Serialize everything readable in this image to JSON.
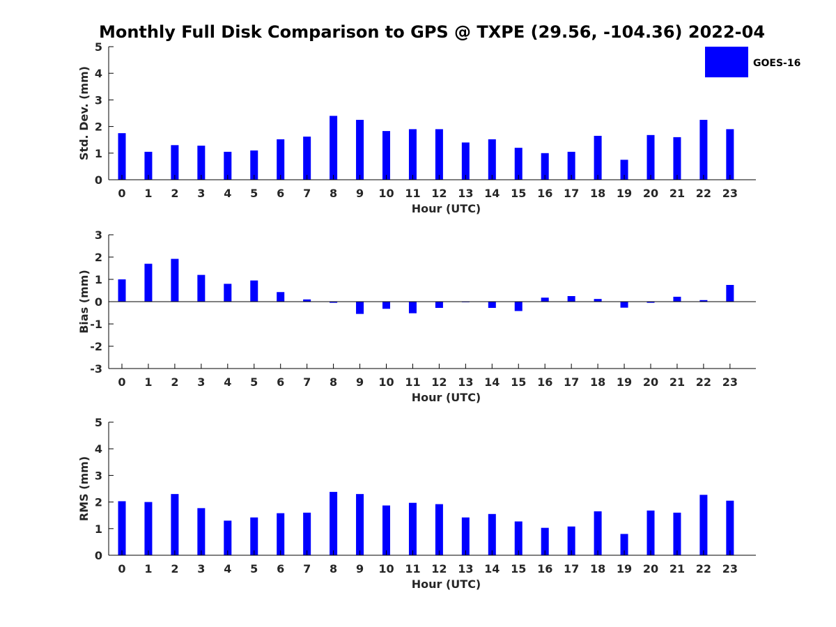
{
  "title": "Monthly Full Disk Comparison to GPS @ TXPE (29.56, -104.36) 2022-04",
  "legend": {
    "label": "GOES-16",
    "color": "#0000ff"
  },
  "chart_data": [
    {
      "type": "bar",
      "name": "stddev",
      "categories": [
        "0",
        "1",
        "2",
        "3",
        "4",
        "5",
        "6",
        "7",
        "8",
        "9",
        "10",
        "11",
        "12",
        "13",
        "14",
        "15",
        "16",
        "17",
        "18",
        "19",
        "20",
        "21",
        "22",
        "23"
      ],
      "series": [
        {
          "name": "GOES-16",
          "values": [
            1.75,
            1.05,
            1.3,
            1.28,
            1.05,
            1.1,
            1.52,
            1.62,
            2.4,
            2.25,
            1.83,
            1.9,
            1.9,
            1.4,
            1.52,
            1.2,
            1.0,
            1.05,
            1.65,
            0.75,
            1.68,
            1.6,
            2.25,
            1.9
          ]
        }
      ],
      "xlabel": "Hour (UTC)",
      "ylabel": "Std. Dev. (mm)",
      "ylim": [
        0,
        5
      ],
      "yticks": [
        "0",
        "1",
        "2",
        "3",
        "4",
        "5"
      ],
      "color": "#0000ff"
    },
    {
      "type": "bar",
      "name": "bias",
      "categories": [
        "0",
        "1",
        "2",
        "3",
        "4",
        "5",
        "6",
        "7",
        "8",
        "9",
        "10",
        "11",
        "12",
        "13",
        "14",
        "15",
        "16",
        "17",
        "18",
        "19",
        "20",
        "21",
        "22",
        "23"
      ],
      "series": [
        {
          "name": "GOES-16",
          "values": [
            1.0,
            1.7,
            1.92,
            1.2,
            0.8,
            0.95,
            0.43,
            0.1,
            -0.05,
            -0.55,
            -0.32,
            -0.52,
            -0.28,
            -0.02,
            -0.28,
            -0.42,
            0.18,
            0.25,
            0.12,
            -0.27,
            -0.05,
            0.22,
            0.07,
            0.75
          ]
        }
      ],
      "xlabel": "Hour (UTC)",
      "ylabel": "Bias (mm)",
      "ylim": [
        -3,
        3
      ],
      "yticks": [
        "-3",
        "-2",
        "-1",
        "0",
        "1",
        "2",
        "3"
      ],
      "zero_line": true,
      "color": "#0000ff"
    },
    {
      "type": "bar",
      "name": "rms",
      "categories": [
        "0",
        "1",
        "2",
        "3",
        "4",
        "5",
        "6",
        "7",
        "8",
        "9",
        "10",
        "11",
        "12",
        "13",
        "14",
        "15",
        "16",
        "17",
        "18",
        "19",
        "20",
        "21",
        "22",
        "23"
      ],
      "series": [
        {
          "name": "GOES-16",
          "values": [
            2.03,
            2.0,
            2.3,
            1.77,
            1.3,
            1.42,
            1.58,
            1.6,
            2.38,
            2.3,
            1.87,
            1.97,
            1.92,
            1.42,
            1.55,
            1.27,
            1.03,
            1.08,
            1.65,
            0.8,
            1.68,
            1.6,
            2.27,
            2.05
          ]
        }
      ],
      "xlabel": "Hour (UTC)",
      "ylabel": "RMS (mm)",
      "ylim": [
        0,
        5
      ],
      "yticks": [
        "0",
        "1",
        "2",
        "3",
        "4",
        "5"
      ],
      "color": "#0000ff"
    }
  ]
}
